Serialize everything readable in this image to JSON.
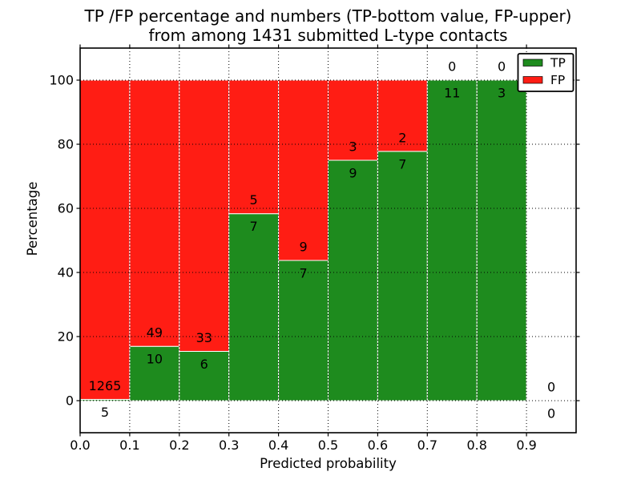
{
  "chart_data": {
    "type": "bar",
    "stacked": true,
    "title": "TP /FP percentage and numbers (TP-bottom value, FP-upper)\nfrom among 1431 submitted L-type contacts",
    "title_lines": [
      "TP /FP percentage and numbers (TP-bottom value, FP-upper)",
      "from among 1431 submitted L-type contacts"
    ],
    "xlabel": "Predicted probability",
    "ylabel": "Percentage",
    "xlim": [
      0.0,
      1.0
    ],
    "ylim": [
      -10,
      110
    ],
    "grid": true,
    "legend": {
      "position": "upper right",
      "entries": [
        {
          "label": "TP",
          "color": "#1e8b1e"
        },
        {
          "label": "FP",
          "color": "#ff1d14"
        }
      ]
    },
    "xticks": [
      {
        "value": 0.0,
        "label": "0.0"
      },
      {
        "value": 0.1,
        "label": "0.1"
      },
      {
        "value": 0.2,
        "label": "0.2"
      },
      {
        "value": 0.3,
        "label": "0.3"
      },
      {
        "value": 0.4,
        "label": "0.4"
      },
      {
        "value": 0.5,
        "label": "0.5"
      },
      {
        "value": 0.6,
        "label": "0.6"
      },
      {
        "value": 0.7,
        "label": "0.7"
      },
      {
        "value": 0.8,
        "label": "0.8"
      },
      {
        "value": 0.9,
        "label": "0.9"
      }
    ],
    "yticks": [
      {
        "value": 0,
        "label": "0"
      },
      {
        "value": 20,
        "label": "20"
      },
      {
        "value": 40,
        "label": "40"
      },
      {
        "value": 60,
        "label": "60"
      },
      {
        "value": 80,
        "label": "80"
      },
      {
        "value": 100,
        "label": "100"
      }
    ],
    "series": [
      {
        "name": "TP",
        "color": "#1e8b1e"
      },
      {
        "name": "FP",
        "color": "#ff1d14"
      }
    ],
    "bins": [
      {
        "range": [
          0.0,
          0.1
        ],
        "tp": 5,
        "fp": 1265,
        "tp_pct": 0.39
      },
      {
        "range": [
          0.1,
          0.2
        ],
        "tp": 10,
        "fp": 49,
        "tp_pct": 16.95
      },
      {
        "range": [
          0.2,
          0.3
        ],
        "tp": 6,
        "fp": 33,
        "tp_pct": 15.38
      },
      {
        "range": [
          0.3,
          0.4
        ],
        "tp": 7,
        "fp": 5,
        "tp_pct": 58.33
      },
      {
        "range": [
          0.4,
          0.5
        ],
        "tp": 7,
        "fp": 9,
        "tp_pct": 43.75
      },
      {
        "range": [
          0.5,
          0.6
        ],
        "tp": 9,
        "fp": 3,
        "tp_pct": 75.0
      },
      {
        "range": [
          0.6,
          0.7
        ],
        "tp": 7,
        "fp": 2,
        "tp_pct": 77.78
      },
      {
        "range": [
          0.7,
          0.8
        ],
        "tp": 11,
        "fp": 0,
        "tp_pct": 100.0
      },
      {
        "range": [
          0.8,
          0.9
        ],
        "tp": 3,
        "fp": 0,
        "tp_pct": 100.0
      },
      {
        "range": [
          0.9,
          1.0
        ],
        "tp": 0,
        "fp": 0,
        "tp_pct": null
      }
    ]
  }
}
